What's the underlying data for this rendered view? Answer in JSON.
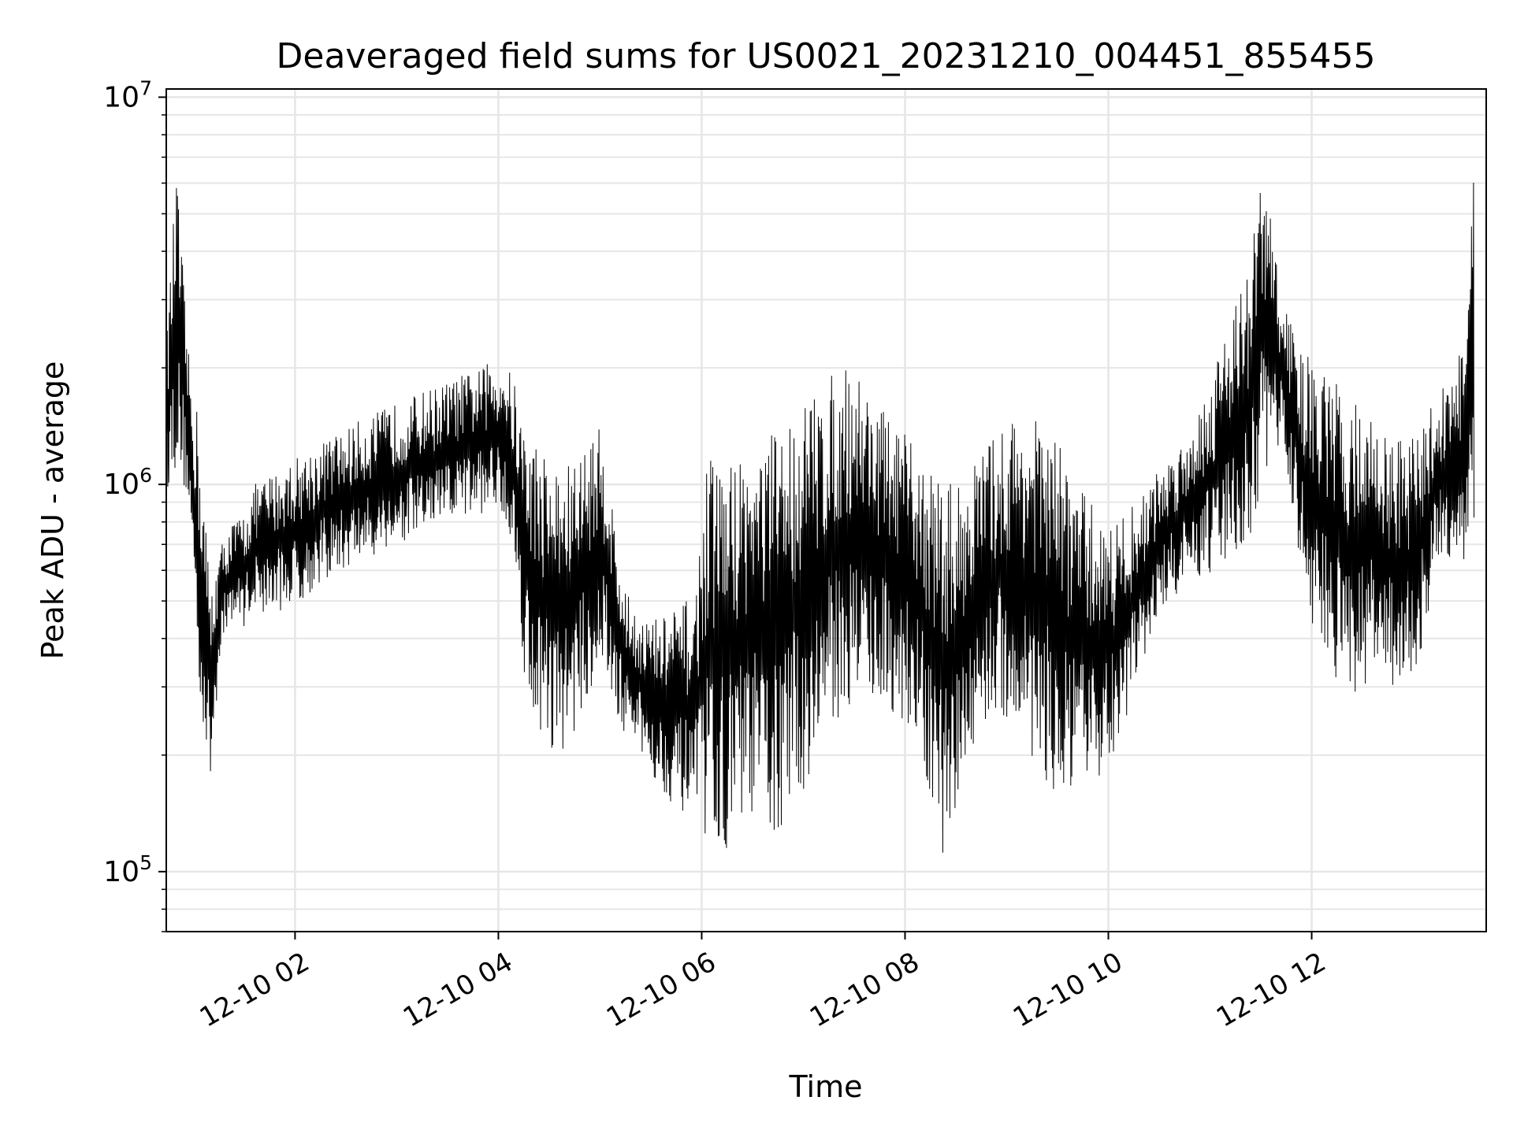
{
  "chart_data": {
    "type": "line",
    "title": "Deaveraged field sums for US0021_20231210_004451_855455",
    "xlabel": "Time",
    "ylabel": "Peak ADU - average",
    "y_scale": "log",
    "ylim": [
      70000,
      10500000
    ],
    "xlim": [
      "2023-12-10 00:44",
      "2023-12-10 13:43"
    ],
    "grid": true,
    "line_color": "#000000",
    "x_ticks": [
      {
        "value": "2023-12-10 02:00",
        "label": "12-10 02"
      },
      {
        "value": "2023-12-10 04:00",
        "label": "12-10 04"
      },
      {
        "value": "2023-12-10 06:00",
        "label": "12-10 06"
      },
      {
        "value": "2023-12-10 08:00",
        "label": "12-10 08"
      },
      {
        "value": "2023-12-10 10:00",
        "label": "12-10 10"
      },
      {
        "value": "2023-12-10 12:00",
        "label": "12-10 12"
      }
    ],
    "y_ticks": [
      {
        "value": 100000,
        "base": "10",
        "exp": "5"
      },
      {
        "value": 1000000,
        "base": "10",
        "exp": "6"
      },
      {
        "value": 10000000,
        "base": "10",
        "exp": "7"
      }
    ],
    "x": [
      "2023-12-10 00:44",
      "2023-12-10 00:50",
      "2023-12-10 00:57",
      "2023-12-10 01:03",
      "2023-12-10 01:10",
      "2023-12-10 01:16",
      "2023-12-10 01:23",
      "2023-12-10 01:30",
      "2023-12-10 01:36",
      "2023-12-10 01:43",
      "2023-12-10 01:50",
      "2023-12-10 01:56",
      "2023-12-10 02:03",
      "2023-12-10 02:10",
      "2023-12-10 02:16",
      "2023-12-10 02:23",
      "2023-12-10 02:30",
      "2023-12-10 02:36",
      "2023-12-10 02:43",
      "2023-12-10 02:50",
      "2023-12-10 02:56",
      "2023-12-10 03:03",
      "2023-12-10 03:10",
      "2023-12-10 03:16",
      "2023-12-10 03:23",
      "2023-12-10 03:30",
      "2023-12-10 03:36",
      "2023-12-10 03:43",
      "2023-12-10 03:50",
      "2023-12-10 03:56",
      "2023-12-10 04:03",
      "2023-12-10 04:10",
      "2023-12-10 04:16",
      "2023-12-10 04:23",
      "2023-12-10 04:30",
      "2023-12-10 04:36",
      "2023-12-10 04:43",
      "2023-12-10 04:50",
      "2023-12-10 04:56",
      "2023-12-10 05:03",
      "2023-12-10 05:10",
      "2023-12-10 05:16",
      "2023-12-10 05:23",
      "2023-12-10 05:30",
      "2023-12-10 05:36",
      "2023-12-10 05:43",
      "2023-12-10 05:50",
      "2023-12-10 05:56",
      "2023-12-10 06:03",
      "2023-12-10 06:10",
      "2023-12-10 06:16",
      "2023-12-10 06:23",
      "2023-12-10 06:30",
      "2023-12-10 06:36",
      "2023-12-10 06:43",
      "2023-12-10 06:50",
      "2023-12-10 06:56",
      "2023-12-10 07:03",
      "2023-12-10 07:10",
      "2023-12-10 07:16",
      "2023-12-10 07:23",
      "2023-12-10 07:30",
      "2023-12-10 07:36",
      "2023-12-10 07:43",
      "2023-12-10 07:50",
      "2023-12-10 07:56",
      "2023-12-10 08:03",
      "2023-12-10 08:10",
      "2023-12-10 08:16",
      "2023-12-10 08:23",
      "2023-12-10 08:30",
      "2023-12-10 08:36",
      "2023-12-10 08:43",
      "2023-12-10 08:50",
      "2023-12-10 08:56",
      "2023-12-10 09:03",
      "2023-12-10 09:10",
      "2023-12-10 09:16",
      "2023-12-10 09:23",
      "2023-12-10 09:30",
      "2023-12-10 09:36",
      "2023-12-10 09:43",
      "2023-12-10 09:50",
      "2023-12-10 09:56",
      "2023-12-10 10:03",
      "2023-12-10 10:10",
      "2023-12-10 10:16",
      "2023-12-10 10:23",
      "2023-12-10 10:30",
      "2023-12-10 10:36",
      "2023-12-10 10:43",
      "2023-12-10 10:50",
      "2023-12-10 10:56",
      "2023-12-10 11:03",
      "2023-12-10 11:10",
      "2023-12-10 11:16",
      "2023-12-10 11:23",
      "2023-12-10 11:30",
      "2023-12-10 11:36",
      "2023-12-10 11:43",
      "2023-12-10 11:50",
      "2023-12-10 11:56",
      "2023-12-10 12:03",
      "2023-12-10 12:10",
      "2023-12-10 12:16",
      "2023-12-10 12:23",
      "2023-12-10 12:30",
      "2023-12-10 12:36",
      "2023-12-10 12:43",
      "2023-12-10 12:50",
      "2023-12-10 12:56",
      "2023-12-10 13:03",
      "2023-12-10 13:10",
      "2023-12-10 13:16",
      "2023-12-10 13:23",
      "2023-12-10 13:30",
      "2023-12-10 13:36",
      "2023-12-10 13:43"
    ],
    "series": [
      {
        "low": [
          950000,
          1100000,
          900000,
          300000,
          160000,
          380000,
          450000,
          430000,
          480000,
          460000,
          470000,
          480000,
          500000,
          520000,
          560000,
          580000,
          600000,
          620000,
          640000,
          660000,
          680000,
          700000,
          720000,
          740000,
          760000,
          780000,
          800000,
          820000,
          840000,
          860000,
          850000,
          600000,
          300000,
          230000,
          210000,
          200000,
          220000,
          260000,
          300000,
          300000,
          250000,
          220000,
          200000,
          180000,
          160000,
          150000,
          140000,
          130000,
          120000,
          115000,
          115000,
          130000,
          140000,
          130000,
          120000,
          130000,
          150000,
          170000,
          200000,
          230000,
          260000,
          270000,
          280000,
          270000,
          260000,
          250000,
          240000,
          180000,
          130000,
          110000,
          130000,
          170000,
          220000,
          250000,
          250000,
          230000,
          210000,
          190000,
          170000,
          150000,
          140000,
          150000,
          160000,
          180000,
          200000,
          240000,
          300000,
          380000,
          450000,
          500000,
          530000,
          550000,
          570000,
          590000,
          600000,
          650000,
          700000,
          900000,
          1200000,
          1200000,
          800000,
          500000,
          400000,
          350000,
          300000,
          280000,
          300000,
          320000,
          300000,
          280000,
          300000,
          320000,
          500000,
          600000,
          650000,
          600000,
          650000
        ],
        "high": [
          2300000,
          6500000,
          2200000,
          1500000,
          550000,
          700000,
          800000,
          850000,
          1000000,
          1050000,
          1100000,
          1150000,
          1200000,
          1250000,
          1300000,
          1350000,
          1400000,
          1450000,
          1500000,
          1550000,
          1600000,
          1650000,
          1700000,
          1750000,
          1800000,
          1850000,
          1900000,
          1950000,
          2000000,
          2100000,
          2200000,
          1800000,
          1400000,
          1300000,
          1200000,
          1100000,
          1150000,
          1250000,
          1400000,
          1400000,
          700000,
          520000,
          480000,
          450000,
          460000,
          480000,
          500000,
          520000,
          1150000,
          1200000,
          1150000,
          1250000,
          1200000,
          1300000,
          1400000,
          1500000,
          1600000,
          1700000,
          1800000,
          1900000,
          2000000,
          2100000,
          1900000,
          1700000,
          1500000,
          1400000,
          1300000,
          1200000,
          1100000,
          1050000,
          1000000,
          1100000,
          1200000,
          1300000,
          1400000,
          1500000,
          1600000,
          1500000,
          1400000,
          1300000,
          1200000,
          1000000,
          900000,
          850000,
          800000,
          850000,
          900000,
          1000000,
          1100000,
          1200000,
          1300000,
          1500000,
          1700000,
          2000000,
          2900000,
          3200000,
          3500000,
          6700000,
          5000000,
          3000000,
          2500000,
          2200000,
          2000000,
          1900000,
          1800000,
          1700000,
          1600000,
          1500000,
          1400000,
          1300000,
          1300000,
          1400000,
          1600000,
          1800000,
          2000000,
          2400000,
          6800000
        ]
      }
    ]
  }
}
